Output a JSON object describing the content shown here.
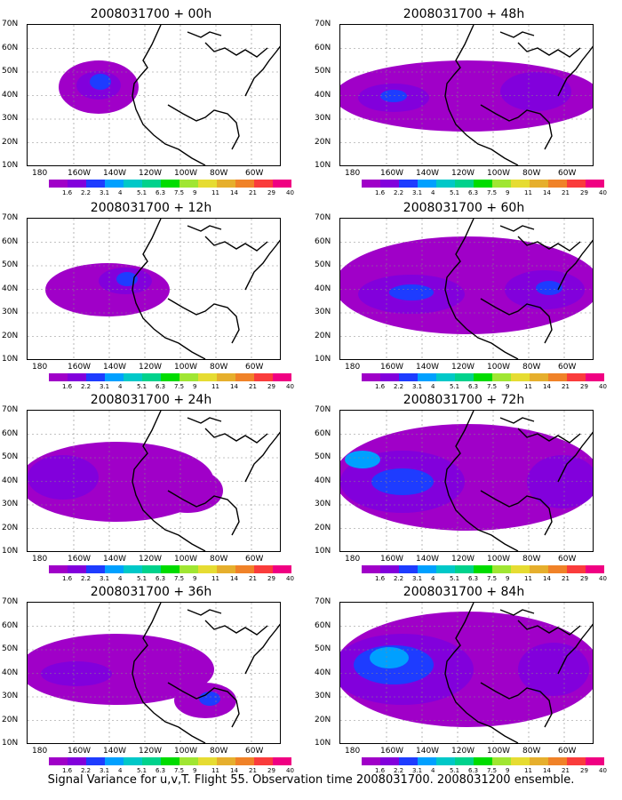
{
  "panels": [
    {
      "title": "2008031700 + 00h",
      "lead": "00h"
    },
    {
      "title": "2008031700 + 48h",
      "lead": "48h"
    },
    {
      "title": "2008031700 + 12h",
      "lead": "12h"
    },
    {
      "title": "2008031700 + 60h",
      "lead": "60h"
    },
    {
      "title": "2008031700 + 24h",
      "lead": "24h"
    },
    {
      "title": "2008031700 + 72h",
      "lead": "72h"
    },
    {
      "title": "2008031700 + 36h",
      "lead": "36h"
    },
    {
      "title": "2008031700 + 84h",
      "lead": "84h"
    }
  ],
  "lat_labels": [
    "70N",
    "60N",
    "50N",
    "40N",
    "30N",
    "20N",
    "10N"
  ],
  "lon_labels": [
    "180",
    "160W",
    "140W",
    "120W",
    "100W",
    "80W",
    "60W"
  ],
  "colorbar": {
    "colors": [
      "#a000c8",
      "#8200dc",
      "#1e3cff",
      "#00a0ff",
      "#00c8c8",
      "#00d28c",
      "#00dc00",
      "#a0e632",
      "#e6dc32",
      "#e6af2d",
      "#f08228",
      "#fa3c3c",
      "#f00082"
    ],
    "values": [
      "1.6",
      "2.2",
      "3.1",
      "4",
      "5.1",
      "6.3",
      "7.5",
      "9",
      "11",
      "14",
      "21",
      "29",
      "40"
    ]
  },
  "caption": "Signal Variance for u,v,T. Flight 55. Observation time 2008031700. 2008031200 ensemble."
}
